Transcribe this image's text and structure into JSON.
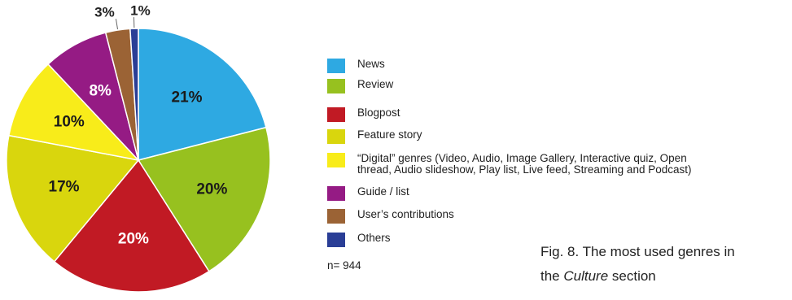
{
  "chart_data": {
    "type": "pie",
    "slices": [
      {
        "label": "News",
        "value": 21,
        "value_label": "21%",
        "color": "#2ea9e2",
        "text_color": "#1a1a1a"
      },
      {
        "label": "Review",
        "value": 20,
        "value_label": "20%",
        "color": "#97c11f",
        "text_color": "#1a1a1a"
      },
      {
        "label": "Blogpost",
        "value": 20,
        "value_label": "20%",
        "color": "#c11a24",
        "text_color": "#ffffff"
      },
      {
        "label": "Feature story",
        "value": 17,
        "value_label": "17%",
        "color": "#d9d60d",
        "text_color": "#1a1a1a"
      },
      {
        "label": "“Digital” genres (Video, Audio, Image Gallery, Interactive quiz, Open thread, Audio slideshow, Play list, Live feed, Streaming and Podcast)",
        "value": 10,
        "value_label": "10%",
        "color": "#f8ec1a",
        "text_color": "#1a1a1a"
      },
      {
        "label": "Guide / list",
        "value": 8,
        "value_label": "8%",
        "color": "#951b84",
        "text_color": "#ffffff"
      },
      {
        "label": "User’s contributions",
        "value": 3,
        "value_label": "3%",
        "color": "#9b6335",
        "text_color": "#1a1a1a"
      },
      {
        "label": "Others",
        "value": 1,
        "value_label": "1%",
        "color": "#2a3e96",
        "text_color": "#1a1a1a"
      }
    ],
    "legend_placement": "right"
  },
  "legend": {
    "items": [
      {
        "text": "News",
        "color": "#2ea9e2"
      },
      {
        "text": "Review",
        "color": "#97c11f"
      },
      {
        "text": "Blogpost",
        "color": "#c11a24"
      },
      {
        "text": "Feature story",
        "color": "#d9d60d"
      },
      {
        "text": "“Digital” genres (Video, Audio, Image Gallery, Interactive quiz, Open",
        "text2": "thread, Audio slideshow, Play list, Live feed, Streaming and Podcast)",
        "color": "#f8ec1a"
      },
      {
        "text": "Guide / list",
        "color": "#951b84"
      },
      {
        "text": "User’s contributions",
        "color": "#9b6335"
      },
      {
        "text": "Others",
        "color": "#2a3e96"
      }
    ]
  },
  "n_label": "n= 944",
  "caption": {
    "line1": "Fig. 8. The most used genres in",
    "line2_pre": "the ",
    "line2_em": "Culture",
    "line2_post": " section"
  }
}
